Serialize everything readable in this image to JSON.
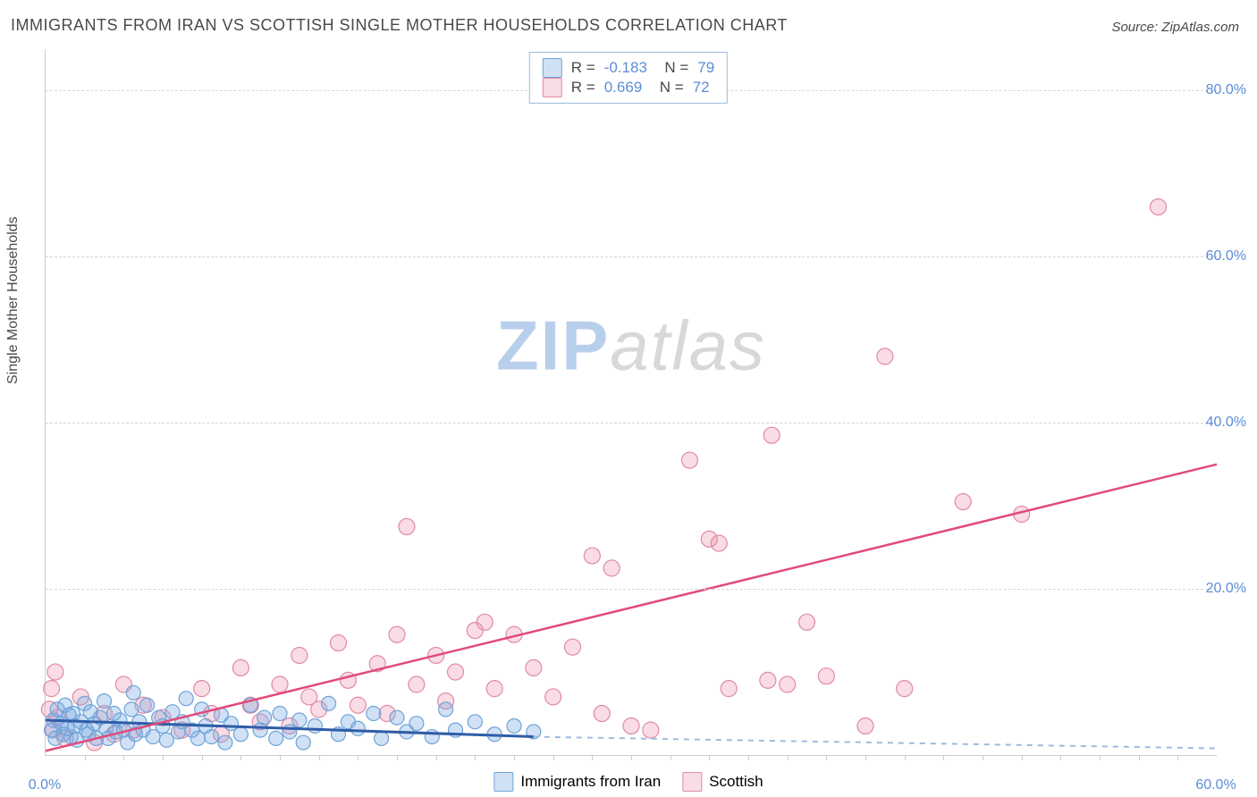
{
  "title": "IMMIGRANTS FROM IRAN VS SCOTTISH SINGLE MOTHER HOUSEHOLDS CORRELATION CHART",
  "source": "Source: ZipAtlas.com",
  "y_axis_label": "Single Mother Households",
  "watermark": {
    "part1": "ZIP",
    "part2": "atlas"
  },
  "chart": {
    "type": "scatter",
    "background_color": "#ffffff",
    "grid_color": "#d5d5d5",
    "axis_color": "#cccccc",
    "xlim": [
      0,
      60
    ],
    "ylim": [
      0,
      85
    ],
    "x_tick_labels": [
      {
        "value": 0,
        "label": "0.0%"
      },
      {
        "value": 60,
        "label": "60.0%"
      }
    ],
    "y_tick_labels": [
      {
        "value": 20,
        "label": "20.0%"
      },
      {
        "value": 40,
        "label": "40.0%"
      },
      {
        "value": 60,
        "label": "60.0%"
      },
      {
        "value": 80,
        "label": "80.0%"
      }
    ],
    "x_minor_ticks": [
      2,
      4,
      6,
      8,
      10,
      12,
      14,
      16,
      18,
      20,
      22,
      24,
      26,
      28,
      30,
      32,
      34,
      36,
      38,
      40,
      42,
      44,
      46,
      48,
      50,
      52,
      54,
      56,
      58
    ],
    "series": [
      {
        "name": "Immigrants from Iran",
        "marker_color_fill": "rgba(120,170,225,0.35)",
        "marker_color_stroke": "#6fa3d8",
        "trend_color": "#2f5da8",
        "marker_radius": 8,
        "r": -0.183,
        "n": 79,
        "trend": {
          "x1": 0,
          "y1": 4.2,
          "x2": 25,
          "y2": 2.2,
          "dashed_x2": 60,
          "dashed_y2": 0.8
        },
        "points": [
          [
            0.3,
            3.0
          ],
          [
            0.4,
            4.2
          ],
          [
            0.5,
            2.0
          ],
          [
            0.6,
            5.5
          ],
          [
            0.8,
            3.8
          ],
          [
            0.9,
            2.5
          ],
          [
            1.0,
            6.0
          ],
          [
            1.1,
            3.2
          ],
          [
            1.2,
            4.8
          ],
          [
            1.3,
            2.2
          ],
          [
            1.4,
            5.0
          ],
          [
            1.5,
            3.5
          ],
          [
            1.6,
            1.8
          ],
          [
            1.8,
            4.0
          ],
          [
            2.0,
            6.2
          ],
          [
            2.1,
            3.0
          ],
          [
            2.2,
            2.5
          ],
          [
            2.3,
            5.2
          ],
          [
            2.5,
            3.8
          ],
          [
            2.6,
            2.0
          ],
          [
            2.8,
            4.5
          ],
          [
            3.0,
            6.5
          ],
          [
            3.1,
            3.2
          ],
          [
            3.2,
            2.0
          ],
          [
            3.5,
            5.0
          ],
          [
            3.6,
            2.8
          ],
          [
            3.8,
            4.2
          ],
          [
            4.0,
            3.0
          ],
          [
            4.2,
            1.5
          ],
          [
            4.4,
            5.5
          ],
          [
            4.5,
            7.5
          ],
          [
            4.6,
            2.5
          ],
          [
            4.8,
            4.0
          ],
          [
            5.0,
            3.0
          ],
          [
            5.2,
            6.0
          ],
          [
            5.5,
            2.2
          ],
          [
            5.8,
            4.5
          ],
          [
            6.0,
            3.5
          ],
          [
            6.2,
            1.8
          ],
          [
            6.5,
            5.2
          ],
          [
            6.8,
            2.8
          ],
          [
            7.0,
            4.0
          ],
          [
            7.2,
            6.8
          ],
          [
            7.5,
            3.0
          ],
          [
            7.8,
            2.0
          ],
          [
            8.0,
            5.5
          ],
          [
            8.2,
            3.5
          ],
          [
            8.5,
            2.2
          ],
          [
            9.0,
            4.8
          ],
          [
            9.2,
            1.5
          ],
          [
            9.5,
            3.8
          ],
          [
            10.0,
            2.5
          ],
          [
            10.5,
            6.0
          ],
          [
            11.0,
            3.0
          ],
          [
            11.2,
            4.5
          ],
          [
            11.8,
            2.0
          ],
          [
            12.0,
            5.0
          ],
          [
            12.5,
            2.8
          ],
          [
            13.0,
            4.2
          ],
          [
            13.2,
            1.5
          ],
          [
            13.8,
            3.5
          ],
          [
            14.5,
            6.2
          ],
          [
            15.0,
            2.5
          ],
          [
            15.5,
            4.0
          ],
          [
            16.0,
            3.2
          ],
          [
            16.8,
            5.0
          ],
          [
            17.2,
            2.0
          ],
          [
            18.0,
            4.5
          ],
          [
            18.5,
            2.8
          ],
          [
            19.0,
            3.8
          ],
          [
            19.8,
            2.2
          ],
          [
            20.5,
            5.5
          ],
          [
            21.0,
            3.0
          ],
          [
            22.0,
            4.0
          ],
          [
            23.0,
            2.5
          ],
          [
            24.0,
            3.5
          ],
          [
            25.0,
            2.8
          ]
        ]
      },
      {
        "name": "Scottish",
        "marker_color_fill": "rgba(235,140,165,0.30)",
        "marker_color_stroke": "#e08aa5",
        "trend_color": "#e14b7a",
        "marker_radius": 9,
        "r": 0.669,
        "n": 72,
        "trend": {
          "x1": 0,
          "y1": 0.5,
          "x2": 60,
          "y2": 35.0
        },
        "points": [
          [
            0.2,
            5.5
          ],
          [
            0.3,
            8.0
          ],
          [
            0.4,
            3.0
          ],
          [
            0.5,
            10.0
          ],
          [
            0.6,
            4.5
          ],
          [
            1.0,
            2.0
          ],
          [
            1.8,
            7.0
          ],
          [
            2.5,
            1.5
          ],
          [
            3.0,
            5.0
          ],
          [
            3.5,
            2.5
          ],
          [
            4.0,
            8.5
          ],
          [
            4.5,
            3.0
          ],
          [
            5.0,
            6.0
          ],
          [
            6.0,
            4.5
          ],
          [
            7.0,
            3.0
          ],
          [
            8.0,
            8.0
          ],
          [
            8.5,
            5.0
          ],
          [
            9.0,
            2.5
          ],
          [
            10.0,
            10.5
          ],
          [
            10.5,
            6.0
          ],
          [
            11.0,
            4.0
          ],
          [
            12.0,
            8.5
          ],
          [
            12.5,
            3.5
          ],
          [
            13.0,
            12.0
          ],
          [
            13.5,
            7.0
          ],
          [
            14.0,
            5.5
          ],
          [
            15.0,
            13.5
          ],
          [
            15.5,
            9.0
          ],
          [
            16.0,
            6.0
          ],
          [
            17.0,
            11.0
          ],
          [
            17.5,
            5.0
          ],
          [
            18.0,
            14.5
          ],
          [
            18.5,
            27.5
          ],
          [
            19.0,
            8.5
          ],
          [
            20.0,
            12.0
          ],
          [
            20.5,
            6.5
          ],
          [
            21.0,
            10.0
          ],
          [
            22.0,
            15.0
          ],
          [
            22.5,
            16.0
          ],
          [
            23.0,
            8.0
          ],
          [
            24.0,
            14.5
          ],
          [
            25.0,
            10.5
          ],
          [
            26.0,
            7.0
          ],
          [
            27.0,
            13.0
          ],
          [
            28.0,
            24.0
          ],
          [
            28.5,
            5.0
          ],
          [
            29.0,
            22.5
          ],
          [
            30.0,
            3.5
          ],
          [
            31.0,
            3.0
          ],
          [
            33.0,
            35.5
          ],
          [
            34.0,
            26.0
          ],
          [
            34.5,
            25.5
          ],
          [
            35.0,
            8.0
          ],
          [
            37.0,
            9.0
          ],
          [
            37.2,
            38.5
          ],
          [
            38.0,
            8.5
          ],
          [
            39.0,
            16.0
          ],
          [
            40.0,
            9.5
          ],
          [
            42.0,
            3.5
          ],
          [
            43.0,
            48.0
          ],
          [
            44.0,
            8.0
          ],
          [
            47.0,
            30.5
          ],
          [
            50.0,
            29.0
          ],
          [
            57.0,
            66.0
          ]
        ]
      }
    ]
  },
  "legend_stats_fontsize": 17,
  "title_fontsize": 18,
  "axis_label_fontsize": 16,
  "tick_label_color": "#5b8dd6"
}
